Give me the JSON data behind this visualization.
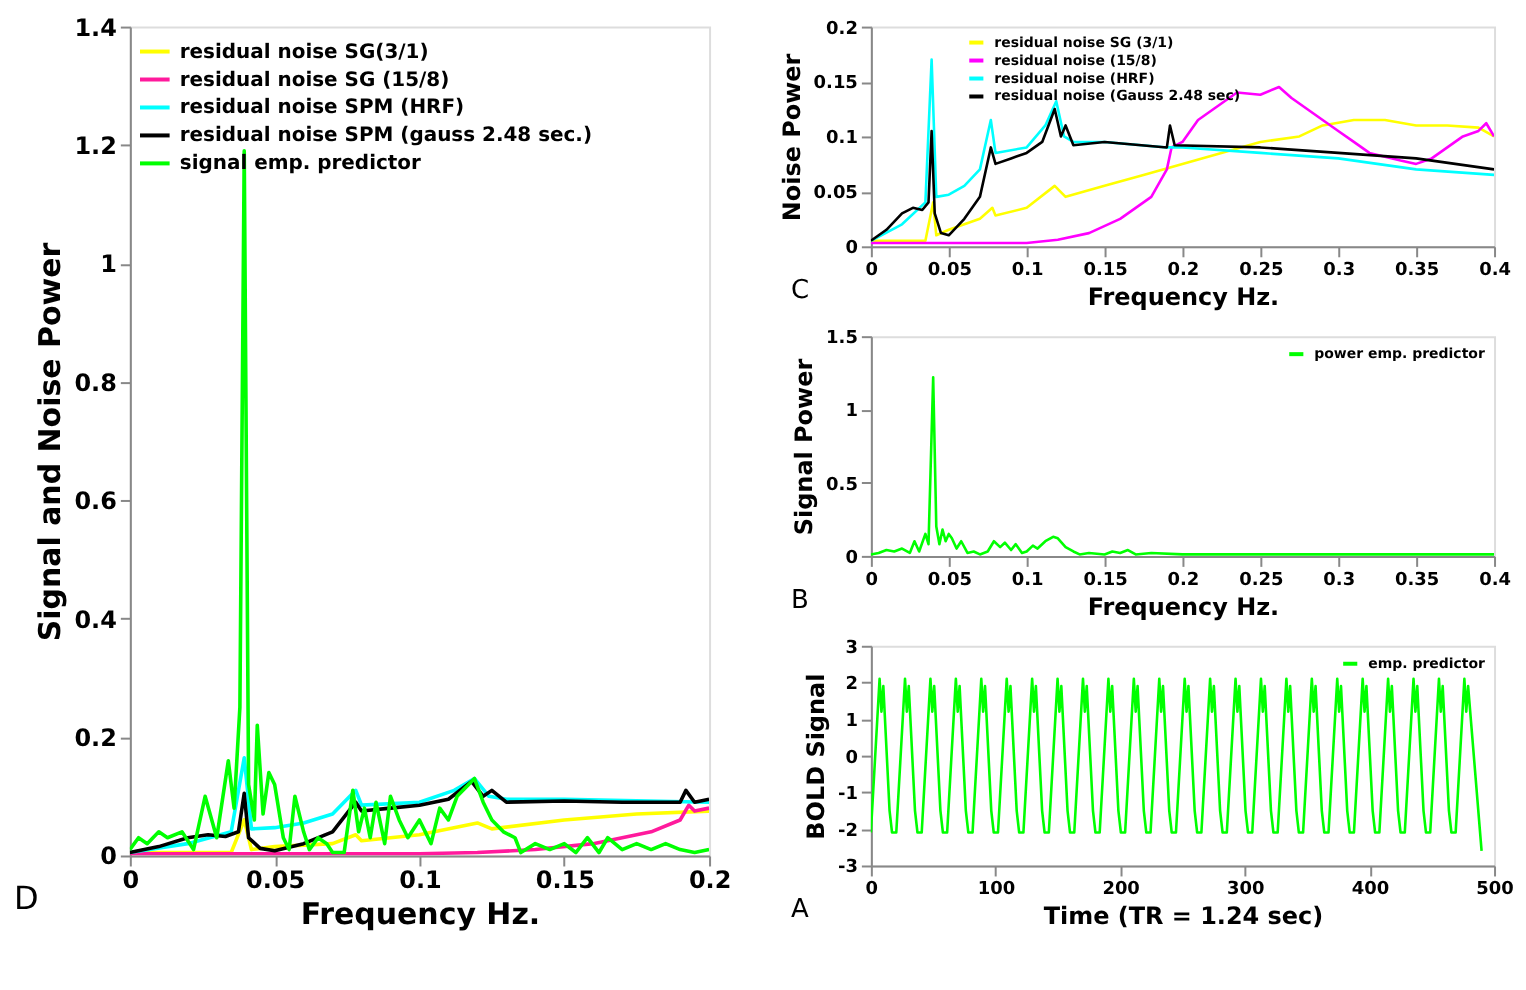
{
  "chart_data": [
    {
      "type": "line",
      "xlabel": "Frequency Hz.",
      "ylabel": "Signal and Noise Power",
      "xlim": [
        0,
        0.2
      ],
      "ylim": [
        0,
        1.4
      ],
      "xticks": [
        0,
        0.05,
        0.1,
        0.15,
        0.2
      ],
      "yticks": [
        0,
        0.2,
        0.4,
        0.6,
        0.8,
        1,
        1.2,
        1.4
      ],
      "grid": false,
      "legend": "top left",
      "annotations": [
        "D"
      ],
      "series": [
        {
          "name": "residual noise SG(3/1)",
          "color": "#ffff00",
          "x": [
            0,
            0.035,
            0.0395,
            0.042,
            0.05,
            0.07,
            0.078,
            0.08,
            0.1,
            0.12,
            0.125,
            0.15,
            0.175,
            0.2
          ],
          "values": [
            0.005,
            0.005,
            0.06,
            0.01,
            0.015,
            0.02,
            0.035,
            0.025,
            0.035,
            0.055,
            0.045,
            0.06,
            0.07,
            0.075
          ]
        },
        {
          "name": "residual noise SG (15/8)",
          "color": "#ff1a9c",
          "x": [
            0,
            0.1,
            0.12,
            0.14,
            0.16,
            0.18,
            0.19,
            0.193,
            0.195,
            0.2
          ],
          "values": [
            0.003,
            0.003,
            0.005,
            0.01,
            0.02,
            0.04,
            0.06,
            0.085,
            0.075,
            0.08
          ]
        },
        {
          "name": "residual noise SPM (HRF)",
          "color": "#00ffff",
          "x": [
            0,
            0.02,
            0.035,
            0.0395,
            0.042,
            0.05,
            0.06,
            0.07,
            0.078,
            0.08,
            0.1,
            0.112,
            0.119,
            0.124,
            0.13,
            0.15,
            0.2
          ],
          "values": [
            0.005,
            0.02,
            0.04,
            0.165,
            0.045,
            0.047,
            0.055,
            0.07,
            0.11,
            0.085,
            0.09,
            0.11,
            0.13,
            0.1,
            0.095,
            0.095,
            0.09
          ]
        },
        {
          "name": "residual noise SPM (gauss 2.48 sec.)",
          "color": "#000000",
          "x": [
            0,
            0.01,
            0.02,
            0.027,
            0.033,
            0.0375,
            0.0395,
            0.041,
            0.045,
            0.05,
            0.06,
            0.07,
            0.078,
            0.08,
            0.09,
            0.1,
            0.11,
            0.118,
            0.122,
            0.125,
            0.13,
            0.15,
            0.17,
            0.19,
            0.192,
            0.195,
            0.2
          ],
          "values": [
            0.005,
            0.015,
            0.03,
            0.035,
            0.032,
            0.04,
            0.105,
            0.03,
            0.012,
            0.008,
            0.02,
            0.04,
            0.09,
            0.075,
            0.08,
            0.085,
            0.095,
            0.125,
            0.1,
            0.11,
            0.09,
            0.092,
            0.09,
            0.09,
            0.11,
            0.09,
            0.095
          ]
        },
        {
          "name": "signal emp. predictor",
          "color": "#00ff00",
          "x": [
            0,
            0.003,
            0.006,
            0.01,
            0.013,
            0.018,
            0.022,
            0.026,
            0.03,
            0.034,
            0.036,
            0.038,
            0.0395,
            0.041,
            0.043,
            0.044,
            0.046,
            0.048,
            0.05,
            0.053,
            0.055,
            0.057,
            0.06,
            0.062,
            0.065,
            0.068,
            0.07,
            0.074,
            0.077,
            0.079,
            0.081,
            0.083,
            0.085,
            0.088,
            0.09,
            0.093,
            0.096,
            0.1,
            0.104,
            0.107,
            0.11,
            0.113,
            0.117,
            0.119,
            0.122,
            0.125,
            0.129,
            0.133,
            0.135,
            0.14,
            0.145,
            0.15,
            0.154,
            0.158,
            0.162,
            0.165,
            0.17,
            0.175,
            0.18,
            0.185,
            0.19,
            0.195,
            0.2
          ],
          "values": [
            0.01,
            0.03,
            0.02,
            0.04,
            0.03,
            0.04,
            0.01,
            0.1,
            0.03,
            0.16,
            0.08,
            0.25,
            1.19,
            0.12,
            0.06,
            0.22,
            0.07,
            0.14,
            0.12,
            0.03,
            0.01,
            0.1,
            0.04,
            0.01,
            0.03,
            0.02,
            0.005,
            0.005,
            0.11,
            0.04,
            0.08,
            0.03,
            0.09,
            0.02,
            0.1,
            0.06,
            0.03,
            0.06,
            0.02,
            0.08,
            0.06,
            0.1,
            0.12,
            0.13,
            0.09,
            0.06,
            0.04,
            0.03,
            0.005,
            0.02,
            0.01,
            0.02,
            0.005,
            0.03,
            0.005,
            0.03,
            0.01,
            0.02,
            0.01,
            0.02,
            0.01,
            0.005,
            0.01
          ]
        }
      ]
    },
    {
      "type": "line",
      "xlabel": "Frequency Hz.",
      "ylabel": "Noise Power",
      "xlim": [
        0,
        0.4
      ],
      "ylim": [
        0,
        0.2
      ],
      "xticks": [
        0,
        0.05,
        0.1,
        0.15,
        0.2,
        0.25,
        0.3,
        0.35,
        0.4
      ],
      "yticks": [
        0,
        0.05,
        0.1,
        0.15,
        0.2
      ],
      "grid": false,
      "legend": "top",
      "annotations": [
        "C"
      ],
      "series": [
        {
          "name": "residual noise SG (3/1)",
          "color": "#ffff00",
          "x": [
            0,
            0.035,
            0.04,
            0.042,
            0.05,
            0.07,
            0.078,
            0.08,
            0.1,
            0.118,
            0.125,
            0.15,
            0.175,
            0.2,
            0.225,
            0.25,
            0.275,
            0.29,
            0.31,
            0.33,
            0.35,
            0.37,
            0.39,
            0.4
          ],
          "values": [
            0.005,
            0.005,
            0.04,
            0.01,
            0.015,
            0.025,
            0.035,
            0.028,
            0.035,
            0.055,
            0.045,
            0.055,
            0.065,
            0.075,
            0.085,
            0.095,
            0.1,
            0.11,
            0.115,
            0.115,
            0.11,
            0.11,
            0.108,
            0.1
          ]
        },
        {
          "name": "residual noise (15/8)",
          "color": "#ff00ff",
          "x": [
            0,
            0.1,
            0.12,
            0.14,
            0.16,
            0.18,
            0.19,
            0.193,
            0.2,
            0.21,
            0.22,
            0.235,
            0.25,
            0.262,
            0.27,
            0.28,
            0.29,
            0.3,
            0.31,
            0.32,
            0.34,
            0.35,
            0.36,
            0.37,
            0.38,
            0.39,
            0.395,
            0.4
          ],
          "values": [
            0.003,
            0.003,
            0.006,
            0.012,
            0.025,
            0.045,
            0.07,
            0.09,
            0.095,
            0.115,
            0.125,
            0.14,
            0.138,
            0.145,
            0.135,
            0.125,
            0.115,
            0.105,
            0.095,
            0.085,
            0.078,
            0.075,
            0.08,
            0.09,
            0.1,
            0.105,
            0.112,
            0.1
          ]
        },
        {
          "name": "residual noise (HRF)",
          "color": "#00ffff",
          "x": [
            0,
            0.02,
            0.035,
            0.039,
            0.042,
            0.05,
            0.06,
            0.07,
            0.077,
            0.08,
            0.1,
            0.112,
            0.119,
            0.124,
            0.13,
            0.15,
            0.19,
            0.2,
            0.25,
            0.3,
            0.35,
            0.4
          ],
          "values": [
            0.005,
            0.02,
            0.04,
            0.17,
            0.045,
            0.047,
            0.055,
            0.07,
            0.115,
            0.085,
            0.09,
            0.11,
            0.132,
            0.1,
            0.095,
            0.095,
            0.09,
            0.09,
            0.085,
            0.08,
            0.07,
            0.065
          ]
        },
        {
          "name": "residual noise (Gauss 2.48 sec)",
          "color": "#000000",
          "x": [
            0,
            0.01,
            0.02,
            0.027,
            0.033,
            0.037,
            0.039,
            0.041,
            0.045,
            0.05,
            0.06,
            0.07,
            0.077,
            0.08,
            0.09,
            0.1,
            0.11,
            0.118,
            0.122,
            0.125,
            0.13,
            0.15,
            0.19,
            0.192,
            0.195,
            0.25,
            0.3,
            0.35,
            0.4
          ],
          "values": [
            0.005,
            0.015,
            0.03,
            0.035,
            0.033,
            0.04,
            0.105,
            0.03,
            0.012,
            0.01,
            0.025,
            0.045,
            0.09,
            0.075,
            0.08,
            0.085,
            0.095,
            0.125,
            0.1,
            0.11,
            0.092,
            0.095,
            0.09,
            0.11,
            0.092,
            0.09,
            0.085,
            0.08,
            0.07
          ]
        }
      ]
    },
    {
      "type": "line",
      "xlabel": "Frequency Hz.",
      "ylabel": "Signal Power",
      "xlim": [
        0,
        0.4
      ],
      "ylim": [
        0,
        1.5
      ],
      "xticks": [
        0,
        0.05,
        0.1,
        0.15,
        0.2,
        0.25,
        0.3,
        0.35,
        0.4
      ],
      "yticks": [
        0,
        0.5,
        1,
        1.5
      ],
      "grid": false,
      "legend": "top right",
      "annotations": [
        "B"
      ],
      "series": [
        {
          "name": "power emp. predictor",
          "color": "#00ff00",
          "x": [
            0,
            0.005,
            0.01,
            0.015,
            0.02,
            0.025,
            0.028,
            0.031,
            0.035,
            0.037,
            0.04,
            0.042,
            0.044,
            0.046,
            0.048,
            0.05,
            0.052,
            0.055,
            0.058,
            0.062,
            0.066,
            0.07,
            0.075,
            0.079,
            0.083,
            0.086,
            0.09,
            0.093,
            0.097,
            0.1,
            0.104,
            0.107,
            0.112,
            0.117,
            0.12,
            0.125,
            0.13,
            0.134,
            0.14,
            0.15,
            0.155,
            0.16,
            0.165,
            0.17,
            0.18,
            0.2,
            0.25,
            0.3,
            0.35,
            0.4
          ],
          "values": [
            0.01,
            0.02,
            0.04,
            0.03,
            0.05,
            0.02,
            0.1,
            0.03,
            0.15,
            0.08,
            1.22,
            0.2,
            0.08,
            0.18,
            0.1,
            0.15,
            0.12,
            0.05,
            0.1,
            0.02,
            0.03,
            0.01,
            0.03,
            0.1,
            0.06,
            0.09,
            0.04,
            0.08,
            0.02,
            0.03,
            0.07,
            0.05,
            0.1,
            0.13,
            0.12,
            0.06,
            0.03,
            0.01,
            0.02,
            0.01,
            0.03,
            0.02,
            0.04,
            0.01,
            0.02,
            0.01,
            0.01,
            0.01,
            0.01,
            0.01
          ]
        }
      ]
    },
    {
      "type": "line",
      "xlabel": "Time (TR = 1.24 sec)",
      "ylabel": "BOLD Signal",
      "xlim": [
        0,
        500
      ],
      "ylim": [
        -3,
        3
      ],
      "xticks": [
        0,
        100,
        200,
        300,
        400,
        500
      ],
      "yticks": [
        -3,
        -2,
        -1,
        0,
        1,
        2,
        3
      ],
      "grid": false,
      "legend": "top right",
      "annotations": [
        "A"
      ],
      "series": [
        {
          "name": "emp. predictor",
          "color": "#00ff00",
          "x": [
            0,
            7,
            8.5,
            10,
            15,
            17,
            20.4,
            27.4,
            28.9,
            30.4,
            35.4,
            37.4,
            40.8,
            47.8,
            49.3,
            50.8,
            55.8,
            57.8,
            61.2,
            68.2,
            69.7,
            71.2,
            76.2,
            78.2,
            81.6,
            88.6,
            90.1,
            91.6,
            96.6,
            98.6,
            102,
            109,
            110.5,
            112,
            117,
            119,
            122.4,
            129.4,
            130.9,
            132.4,
            137.4,
            139.4,
            142.8,
            149.8,
            151.3,
            152.8,
            157.8,
            159.8,
            163.2,
            170.2,
            171.7,
            173.2,
            178.2,
            180.2,
            183.6,
            190.6,
            192.1,
            193.6,
            198.6,
            200.6,
            204,
            211,
            212.5,
            214,
            219,
            221,
            224.4,
            231.4,
            232.9,
            234.4,
            239.4,
            241.4,
            244.8,
            251.8,
            253.3,
            254.8,
            259.8,
            261.8,
            265.2,
            272.2,
            273.7,
            275.2,
            280.2,
            282.2,
            285.6,
            292.6,
            294.1,
            295.6,
            300.6,
            302.6,
            306,
            313,
            314.5,
            316,
            321,
            323,
            326.4,
            333.4,
            334.9,
            336.4,
            341.4,
            343.4,
            346.8,
            353.8,
            355.3,
            356.8,
            361.8,
            363.8,
            367.2,
            374.2,
            375.7,
            377.2,
            382.2,
            384.2,
            387.6,
            394.6,
            396.1,
            397.6,
            402.6,
            404.6,
            408,
            415,
            416.5,
            418,
            423,
            425,
            428.4,
            435.4,
            436.9,
            438.4,
            443.4,
            445.4,
            448.8,
            455.8,
            457.3,
            458.8,
            463.8,
            465.8,
            469.2,
            476.2,
            477.7,
            479.2,
            490
          ],
          "values": [
            -2.1,
            2.1,
            1.2,
            1.9,
            -1.5,
            -2.1,
            -2.1,
            2.1,
            1.2,
            1.9,
            -1.5,
            -2.1,
            -2.1,
            2.1,
            1.2,
            1.9,
            -1.5,
            -2.1,
            -2.1,
            2.1,
            1.2,
            1.9,
            -1.5,
            -2.1,
            -2.1,
            2.1,
            1.2,
            1.9,
            -1.5,
            -2.1,
            -2.1,
            2.1,
            1.2,
            1.9,
            -1.5,
            -2.1,
            -2.1,
            2.1,
            1.2,
            1.9,
            -1.5,
            -2.1,
            -2.1,
            2.1,
            1.2,
            1.9,
            -1.5,
            -2.1,
            -2.1,
            2.1,
            1.2,
            1.9,
            -1.5,
            -2.1,
            -2.1,
            2.1,
            1.2,
            1.9,
            -1.5,
            -2.1,
            -2.1,
            2.1,
            1.2,
            1.9,
            -1.5,
            -2.1,
            -2.1,
            2.1,
            1.2,
            1.9,
            -1.5,
            -2.1,
            -2.1,
            2.1,
            1.2,
            1.9,
            -1.5,
            -2.1,
            -2.1,
            2.1,
            1.2,
            1.9,
            -1.5,
            -2.1,
            -2.1,
            2.1,
            1.2,
            1.9,
            -1.5,
            -2.1,
            -2.1,
            2.1,
            1.2,
            1.9,
            -1.5,
            -2.1,
            -2.1,
            2.1,
            1.2,
            1.9,
            -1.5,
            -2.1,
            -2.1,
            2.1,
            1.2,
            1.9,
            -1.5,
            -2.1,
            -2.1,
            2.1,
            1.2,
            1.9,
            -1.5,
            -2.1,
            -2.1,
            2.1,
            1.2,
            1.9,
            -1.5,
            -2.1,
            -2.1,
            2.1,
            1.2,
            1.9,
            -1.5,
            -2.1,
            -2.1,
            2.1,
            1.2,
            1.9,
            -1.5,
            -2.1,
            -2.1,
            2.1,
            1.2,
            1.9,
            -1.5,
            -2.1,
            -2.1,
            2.1,
            1.2,
            1.9,
            -2.6
          ]
        }
      ]
    }
  ]
}
